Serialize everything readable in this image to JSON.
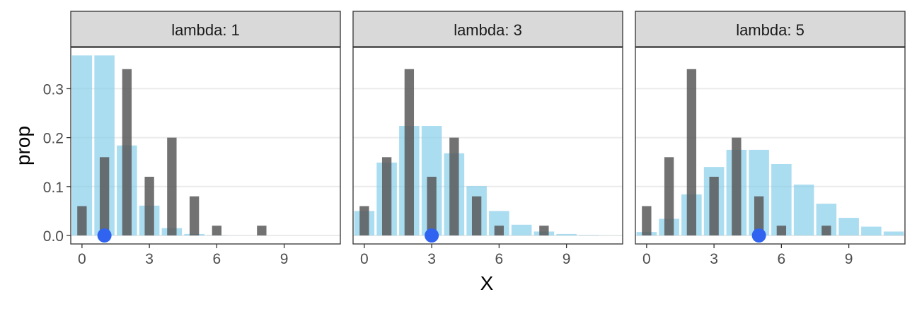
{
  "chart_data": {
    "type": "bar",
    "xlabel": "X",
    "ylabel": "prop",
    "xlim": [
      -0.5,
      11.5
    ],
    "ylim": [
      0,
      0.37
    ],
    "x_ticks": [
      0,
      3,
      6,
      9
    ],
    "y_ticks": [
      0.0,
      0.1,
      0.2,
      0.3
    ],
    "y_tick_labels": [
      "0.0",
      "0.1",
      "0.2",
      "0.3"
    ],
    "grid": "horizontal major gridlines",
    "legend": "none",
    "colors": {
      "observed": "#595959",
      "theoretical": "#87ceeb",
      "lambda_point": "#2f63f0",
      "strip_fill": "#d9d9d9",
      "gridline": "#ebebeb",
      "axis_text": "#4d4d4d"
    },
    "observed": {
      "x": [
        0,
        1,
        2,
        3,
        4,
        5,
        6,
        7,
        8
      ],
      "prop": [
        0.06,
        0.16,
        0.34,
        0.12,
        0.2,
        0.08,
        0.02,
        0.0,
        0.02
      ]
    },
    "panels": [
      {
        "strip_label": "lambda: 1",
        "lambda": 1,
        "x": [
          0,
          1,
          2,
          3,
          4,
          5,
          6,
          7,
          8,
          9,
          10,
          11
        ],
        "prop": [
          0.368,
          0.368,
          0.184,
          0.061,
          0.015,
          0.003,
          0.0005,
          0.0001,
          0.0,
          0.0,
          0.0,
          0.0
        ]
      },
      {
        "strip_label": "lambda: 3",
        "lambda": 3,
        "x": [
          0,
          1,
          2,
          3,
          4,
          5,
          6,
          7,
          8,
          9,
          10,
          11
        ],
        "prop": [
          0.05,
          0.149,
          0.224,
          0.224,
          0.168,
          0.101,
          0.05,
          0.022,
          0.008,
          0.003,
          0.0008,
          0.0002
        ]
      },
      {
        "strip_label": "lambda: 5",
        "lambda": 5,
        "x": [
          0,
          1,
          2,
          3,
          4,
          5,
          6,
          7,
          8,
          9,
          10,
          11
        ],
        "prop": [
          0.007,
          0.034,
          0.084,
          0.14,
          0.175,
          0.175,
          0.146,
          0.104,
          0.065,
          0.036,
          0.018,
          0.008
        ]
      }
    ]
  }
}
